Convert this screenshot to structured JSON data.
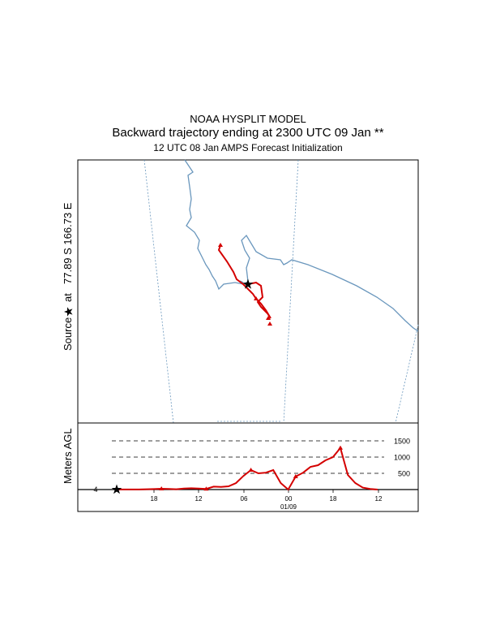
{
  "header": {
    "model": "NOAA HYSPLIT MODEL",
    "title": "Backward trajectory ending at 2300 UTC 09 Jan **",
    "subtitle": "12 UTC 08 Jan    AMPS  Forecast Initialization"
  },
  "source_label": {
    "prefix": "Source",
    "at": "at",
    "location": "77.89 S  166.73 E"
  },
  "colors": {
    "trajectory": "#d40000",
    "coast": "#6a97bd",
    "grid": "#6a97bd"
  },
  "chart_data": [
    {
      "type": "line",
      "name": "map",
      "source_lat": -77.89,
      "source_lon": 166.73,
      "series": [
        {
          "values": []
        }
      ]
    },
    {
      "type": "line",
      "ylabel": "Meters AGL",
      "y_ref_lines": [
        500,
        1000,
        1500
      ],
      "y_ref_labels": [
        "500",
        "1000",
        "1500"
      ],
      "start_label": "4",
      "x_ticks": [
        "18",
        "12",
        "06",
        "00",
        "18",
        "12"
      ],
      "x_date_label": "01/09",
      "series": [
        {
          "hours_before_end": [
            0,
            1,
            2,
            3,
            4,
            5,
            6,
            7,
            8,
            9,
            10,
            11,
            12,
            13,
            14,
            15,
            16,
            17,
            18,
            19,
            20,
            21,
            22,
            23,
            24,
            25,
            26,
            27,
            28,
            29,
            30,
            31,
            32,
            33,
            34,
            35
          ],
          "height_m": [
            4,
            4,
            4,
            4,
            10,
            15,
            25,
            20,
            10,
            30,
            40,
            30,
            20,
            90,
            80,
            100,
            200,
            420,
            600,
            500,
            520,
            600,
            200,
            0,
            400,
            520,
            700,
            750,
            900,
            1000,
            1280,
            450,
            200,
            60,
            20,
            0
          ]
        }
      ]
    }
  ]
}
